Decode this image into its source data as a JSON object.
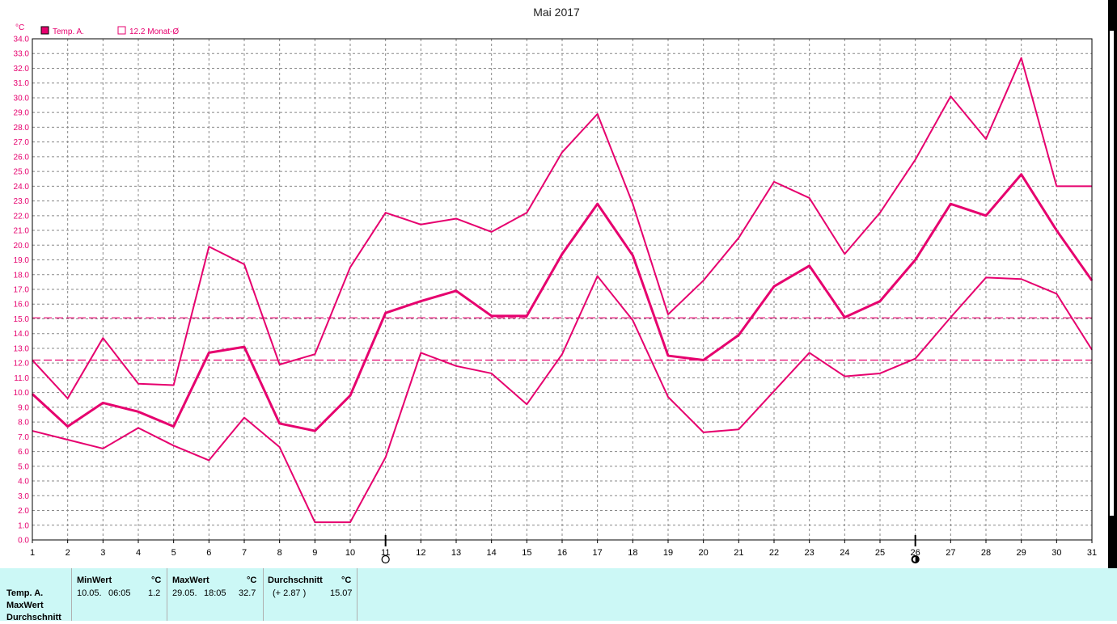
{
  "title": "Mai 2017",
  "y_unit": "°C",
  "legend": [
    {
      "marker": "filled",
      "label": "Temp. A."
    },
    {
      "marker": "open",
      "label": "12.2 Monat-Ø"
    }
  ],
  "colors": {
    "series": "#e6006e",
    "grid": "#888888",
    "text": "#000000",
    "panel": "#ccf8f6"
  },
  "moon_phases": [
    {
      "day": 11,
      "icon": "full-moon-icon"
    },
    {
      "day": 26,
      "icon": "new-moon-icon"
    }
  ],
  "chart_data": {
    "type": "line",
    "title": "Mai 2017",
    "ylabel": "°C",
    "xlabel": "",
    "x": [
      1,
      2,
      3,
      4,
      5,
      6,
      7,
      8,
      9,
      10,
      11,
      12,
      13,
      14,
      15,
      16,
      17,
      18,
      19,
      20,
      21,
      22,
      23,
      24,
      25,
      26,
      27,
      28,
      29,
      30,
      31
    ],
    "xlim": [
      1,
      31
    ],
    "ylim": [
      0,
      34
    ],
    "y_ticks": [
      "0.0",
      "1.0",
      "2.0",
      "3.0",
      "4.0",
      "5.0",
      "6.0",
      "7.0",
      "8.0",
      "9.0",
      "10.0",
      "11.0",
      "12.0",
      "13.0",
      "14.0",
      "15.0",
      "16.0",
      "17.0",
      "18.0",
      "19.0",
      "20.0",
      "21.0",
      "22.0",
      "23.0",
      "24.0",
      "25.0",
      "26.0",
      "27.0",
      "28.0",
      "29.0",
      "30.0",
      "31.0",
      "32.0",
      "33.0",
      "34.0"
    ],
    "grid": true,
    "legend_position": "top-left",
    "series": [
      {
        "role": "max",
        "values": [
          12.2,
          9.6,
          13.7,
          10.6,
          10.5,
          19.9,
          18.7,
          11.9,
          12.6,
          18.5,
          22.2,
          21.4,
          21.8,
          20.9,
          22.2,
          26.3,
          28.9,
          22.8,
          15.3,
          17.6,
          20.5,
          24.3,
          23.2,
          19.4,
          22.2,
          25.8,
          30.1,
          27.2,
          32.7,
          24.0,
          24.0
        ]
      },
      {
        "role": "mean",
        "values": [
          9.9,
          7.7,
          9.3,
          8.7,
          7.7,
          12.7,
          13.1,
          7.9,
          7.4,
          9.8,
          15.4,
          16.2,
          16.9,
          15.2,
          15.2,
          19.4,
          22.8,
          19.3,
          12.5,
          12.2,
          13.9,
          17.2,
          18.6,
          15.1,
          16.2,
          19.0,
          22.8,
          22.0,
          24.8,
          21.0,
          17.6
        ]
      },
      {
        "role": "min",
        "values": [
          7.4,
          6.8,
          6.2,
          7.6,
          6.4,
          5.4,
          8.3,
          6.3,
          1.2,
          1.2,
          5.6,
          12.7,
          11.8,
          11.3,
          9.2,
          12.6,
          17.9,
          14.9,
          9.7,
          7.3,
          7.5,
          10.1,
          12.7,
          11.1,
          11.3,
          12.3,
          15.1,
          17.8,
          17.7,
          16.7,
          12.9
        ]
      }
    ],
    "reference_lines": [
      {
        "value": 15.07,
        "style": "dashed"
      },
      {
        "value": 12.2,
        "style": "dashed"
      }
    ]
  },
  "stats": {
    "row_labels": [
      "Temp. A.",
      "MaxWert",
      "Durchschnitt"
    ],
    "min": {
      "header": "MinWert",
      "unit": "°C",
      "date": "10.05.",
      "time": "06:05",
      "value": "1.2"
    },
    "max": {
      "header": "MaxWert",
      "unit": "°C",
      "date": "29.05.",
      "time": "18:05",
      "value": "32.7"
    },
    "avg": {
      "header": "Durchschnitt",
      "unit": "°C",
      "delta": "(+ 2.87 )",
      "value": "15.07"
    }
  }
}
